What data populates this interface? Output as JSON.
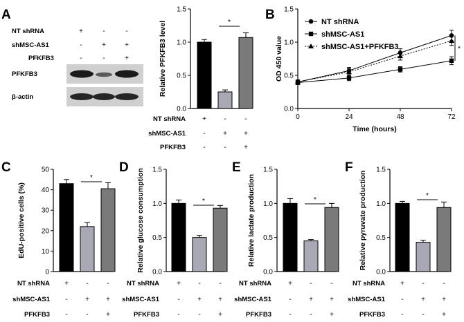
{
  "panel_letters": [
    "A",
    "B",
    "C",
    "D",
    "E",
    "F"
  ],
  "group_rows": [
    {
      "label": "NT shRNA",
      "signs": [
        "+",
        "-",
        "-"
      ]
    },
    {
      "label": "shMSC-AS1",
      "signs": [
        "-",
        "+",
        "+"
      ]
    },
    {
      "label": "PFKFB3",
      "signs": [
        "-",
        "-",
        "+"
      ]
    }
  ],
  "blot": {
    "rows": [
      {
        "label": "PFKFB3",
        "intensity": [
          1.0,
          0.45,
          0.95
        ]
      },
      {
        "label": "β-actin",
        "intensity": [
          0.95,
          0.95,
          0.95
        ]
      }
    ]
  },
  "significance": "*",
  "colors": {
    "black": "#000000",
    "light_gray": "#a9a9b5",
    "dark_gray": "#7a7a7a"
  },
  "chart_data": [
    {
      "id": "A",
      "type": "bar",
      "categories": [
        "NT shRNA",
        "shMSC-AS1",
        "shMSC-AS1+PFKFB3"
      ],
      "values": [
        1.0,
        0.25,
        1.07
      ],
      "errors": [
        0.04,
        0.03,
        0.07
      ],
      "ylabel": "Relative PFKFB3 level",
      "ylim": [
        0,
        1.5
      ],
      "yticks": [
        "0.0",
        "0.5",
        "1.0",
        "1.5"
      ]
    },
    {
      "id": "B",
      "type": "line",
      "x": [
        0,
        24,
        48,
        72
      ],
      "xticks": [
        "0",
        "24",
        "48",
        "72"
      ],
      "xlabel": "Time (hours)",
      "ylabel": "OD 450 value",
      "ylim": [
        0,
        1.5
      ],
      "yticks": [
        "0.0",
        "0.5",
        "1.0",
        "1.5"
      ],
      "series": [
        {
          "name": "NT shRNA",
          "values": [
            0.4,
            0.57,
            0.84,
            1.1
          ],
          "errors": [
            0.03,
            0.05,
            0.06,
            0.08
          ],
          "marker": "circle",
          "dash": false
        },
        {
          "name": "shMSC-AS1",
          "values": [
            0.39,
            0.46,
            0.59,
            0.72
          ],
          "errors": [
            0.03,
            0.04,
            0.04,
            0.06
          ],
          "marker": "square",
          "dash": false
        },
        {
          "name": "shMSC-AS1+PFKFB3",
          "values": [
            0.4,
            0.55,
            0.79,
            1.02
          ],
          "errors": [
            0.03,
            0.05,
            0.06,
            0.07
          ],
          "marker": "triangle",
          "dash": true
        }
      ]
    },
    {
      "id": "C",
      "type": "bar",
      "categories": [
        "NT shRNA",
        "shMSC-AS1",
        "shMSC-AS1+PFKFB3"
      ],
      "values": [
        43,
        22,
        40.5
      ],
      "errors": [
        2,
        2,
        3
      ],
      "ylabel": "EdU-positive cells (%)",
      "ylim": [
        0,
        50
      ],
      "yticks": [
        "0",
        "10",
        "20",
        "30",
        "40",
        "50"
      ]
    },
    {
      "id": "D",
      "type": "bar",
      "categories": [
        "NT shRNA",
        "shMSC-AS1",
        "shMSC-AS1+PFKFB3"
      ],
      "values": [
        1.0,
        0.5,
        0.93
      ],
      "errors": [
        0.05,
        0.03,
        0.04
      ],
      "ylabel": "Relative glucose consumption",
      "ylim": [
        0,
        1.5
      ],
      "yticks": [
        "0.0",
        "0.5",
        "1.0",
        "1.5"
      ]
    },
    {
      "id": "E",
      "type": "bar",
      "categories": [
        "NT shRNA",
        "shMSC-AS1",
        "shMSC-AS1+PFKFB3"
      ],
      "values": [
        1.0,
        0.45,
        0.94
      ],
      "errors": [
        0.07,
        0.02,
        0.06
      ],
      "ylabel": "Relative lactate production",
      "ylim": [
        0,
        1.5
      ],
      "yticks": [
        "0.0",
        "0.5",
        "1.0",
        "1.5"
      ]
    },
    {
      "id": "F",
      "type": "bar",
      "categories": [
        "NT shRNA",
        "shMSC-AS1",
        "shMSC-AS1+PFKFB3"
      ],
      "values": [
        1.0,
        0.43,
        0.94
      ],
      "errors": [
        0.03,
        0.03,
        0.08
      ],
      "ylabel": "Relative pyruvate production",
      "ylim": [
        0,
        1.5
      ],
      "yticks": [
        "0.0",
        "0.5",
        "1.0",
        "1.5"
      ]
    }
  ]
}
